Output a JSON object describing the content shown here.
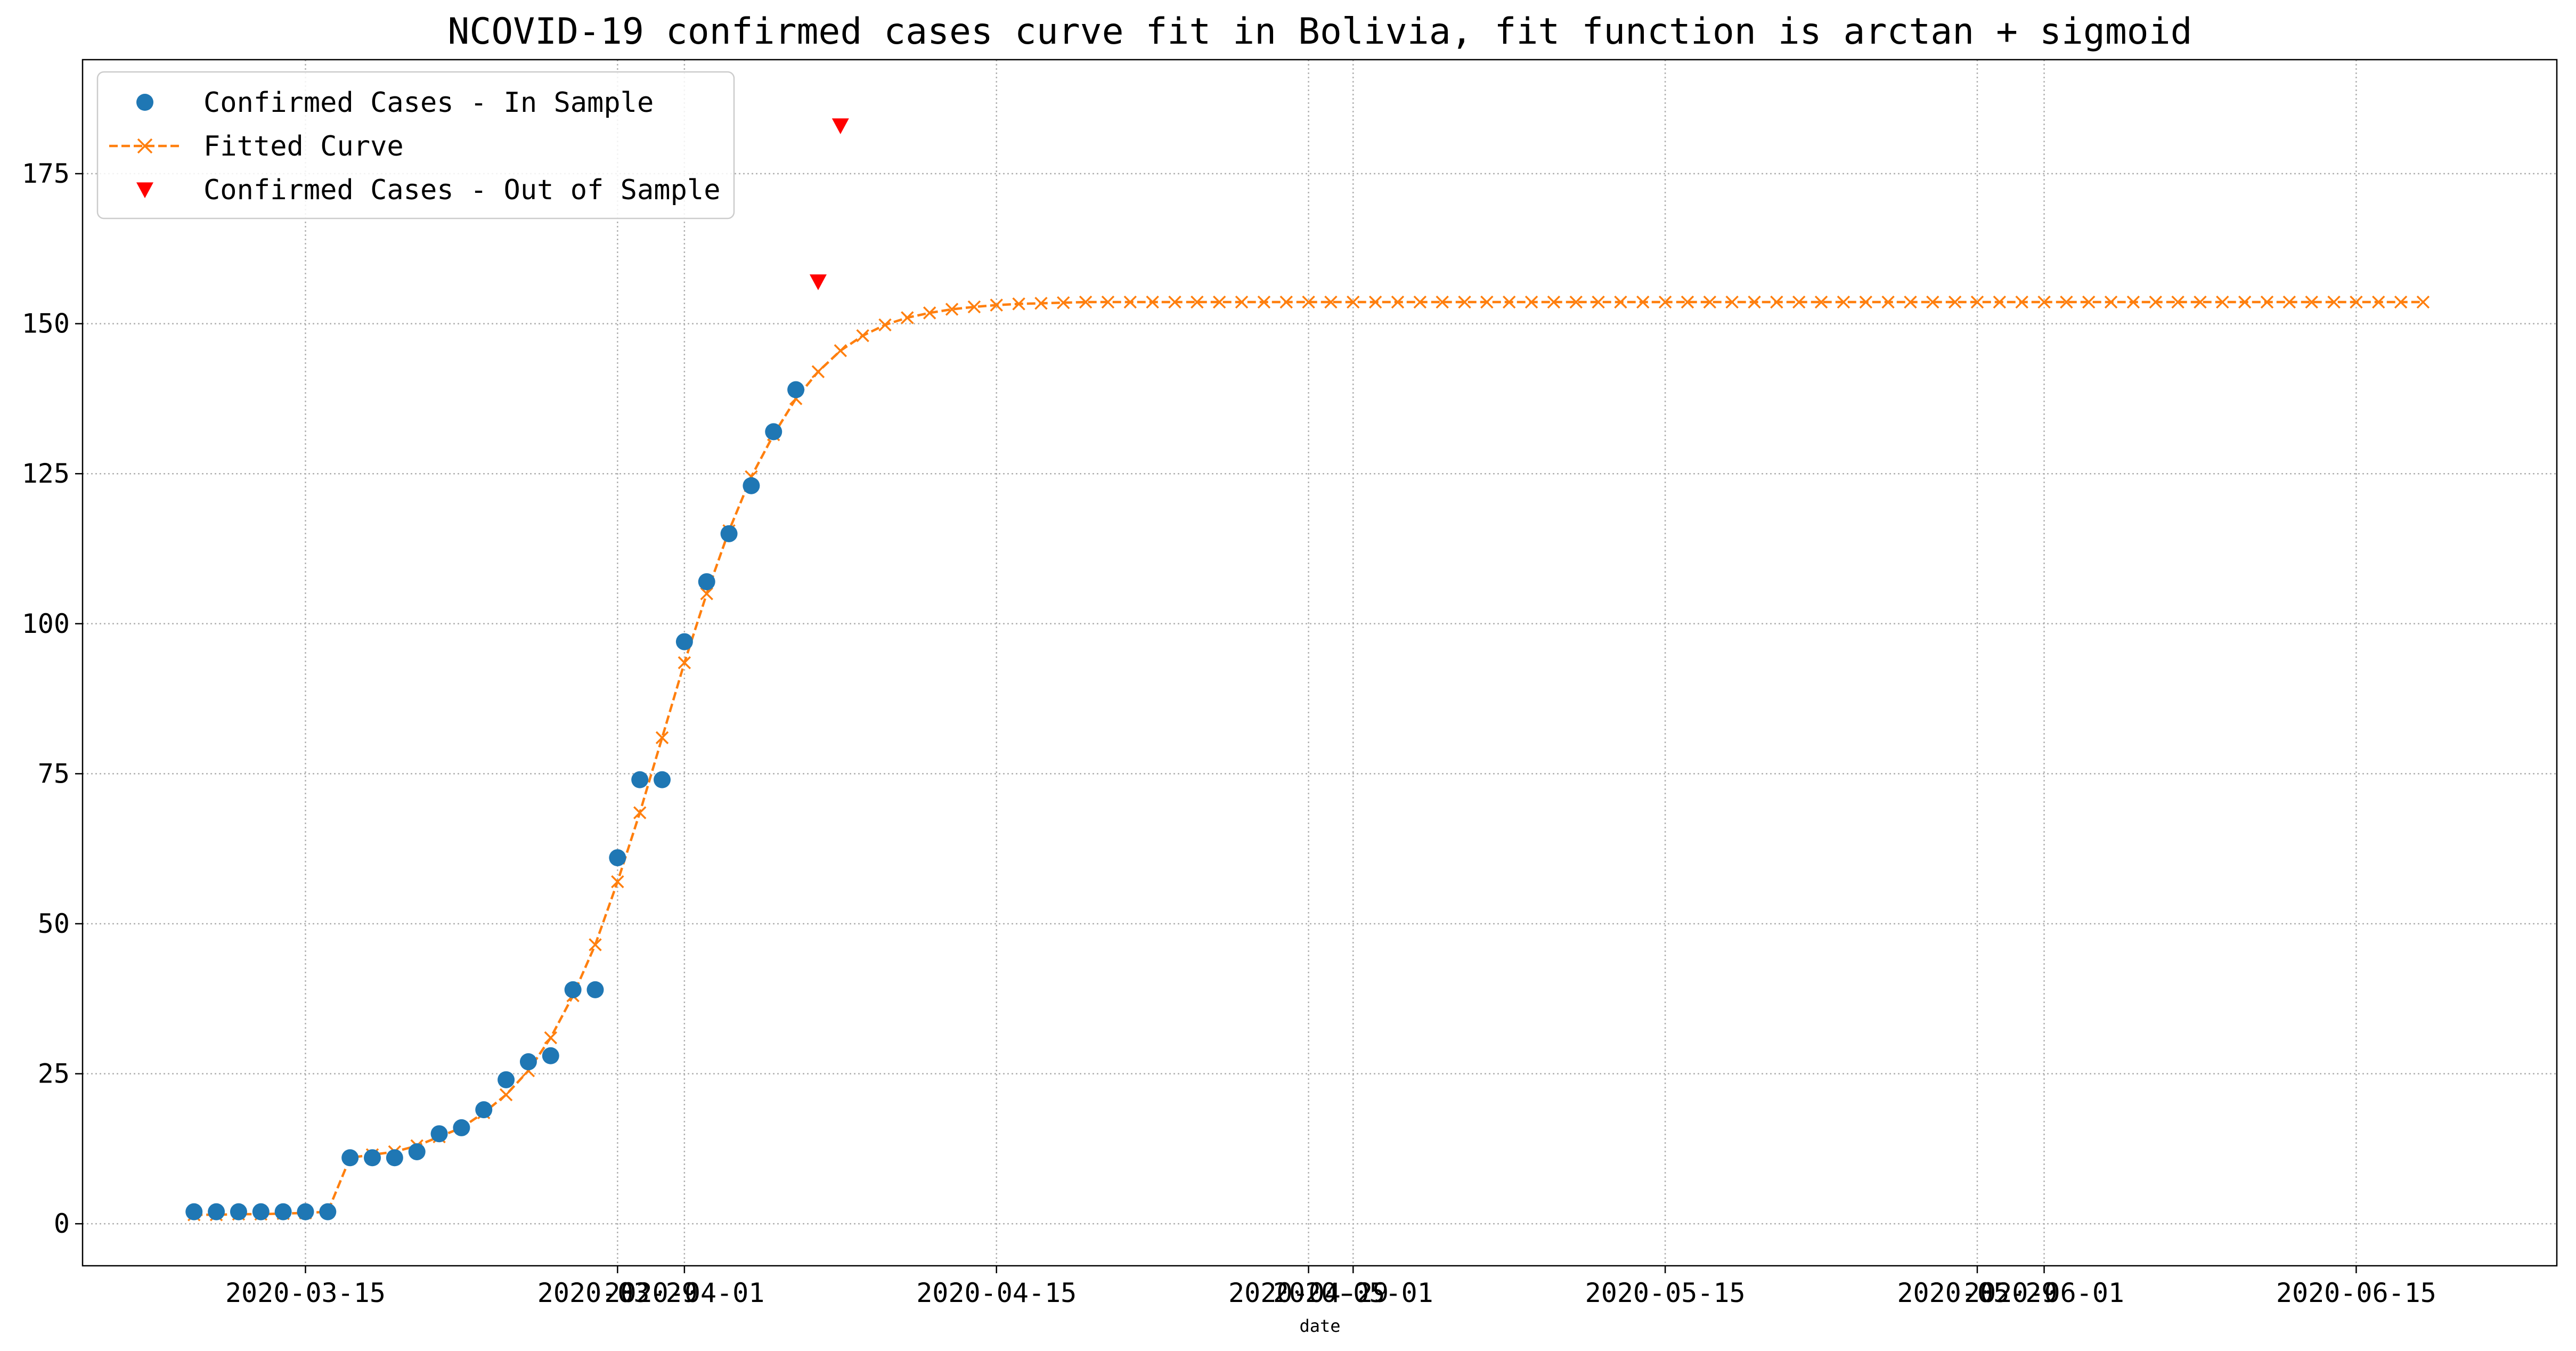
{
  "chart_data": {
    "type": "line",
    "title": "NCOVID-19 confirmed cases curve fit in Bolivia, fit function is arctan + sigmoid",
    "xlabel": "date",
    "ylabel": "",
    "x_axis_type": "date",
    "xlim": [
      "2020-03-05",
      "2020-06-24"
    ],
    "ylim": [
      -7,
      194
    ],
    "y_ticks": [
      0,
      25,
      50,
      75,
      100,
      125,
      150,
      175
    ],
    "x_ticks": [
      "2020-03-15",
      "2020-03-29",
      "2020-04-01",
      "2020-04-15",
      "2020-04-29",
      "2020-05-01",
      "2020-05-15",
      "2020-05-29",
      "2020-06-01",
      "2020-06-15"
    ],
    "grid": true,
    "grid_style": "dotted",
    "legend_position": "top-left",
    "series": [
      {
        "name": "Confirmed Cases - In Sample",
        "kind": "scatter",
        "marker": "circle",
        "color": "#1f77b4",
        "points": [
          [
            "2020-03-10",
            2
          ],
          [
            "2020-03-11",
            2
          ],
          [
            "2020-03-12",
            2
          ],
          [
            "2020-03-13",
            2
          ],
          [
            "2020-03-14",
            2
          ],
          [
            "2020-03-15",
            2
          ],
          [
            "2020-03-16",
            2
          ],
          [
            "2020-03-17",
            11
          ],
          [
            "2020-03-18",
            11
          ],
          [
            "2020-03-19",
            11
          ],
          [
            "2020-03-20",
            12
          ],
          [
            "2020-03-21",
            15
          ],
          [
            "2020-03-22",
            16
          ],
          [
            "2020-03-23",
            19
          ],
          [
            "2020-03-24",
            24
          ],
          [
            "2020-03-25",
            27
          ],
          [
            "2020-03-26",
            28
          ],
          [
            "2020-03-27",
            39
          ],
          [
            "2020-03-28",
            39
          ],
          [
            "2020-03-29",
            61
          ],
          [
            "2020-03-30",
            74
          ],
          [
            "2020-03-31",
            74
          ],
          [
            "2020-04-01",
            97
          ],
          [
            "2020-04-02",
            107
          ],
          [
            "2020-04-03",
            115
          ],
          [
            "2020-04-04",
            123
          ],
          [
            "2020-04-05",
            132
          ],
          [
            "2020-04-06",
            139
          ]
        ]
      },
      {
        "name": "Fitted Curve",
        "kind": "line",
        "marker": "x",
        "line_style": "dashed",
        "color": "#ff7f0e",
        "start": "2020-03-10",
        "values": [
          1.5,
          1.5,
          1.6,
          1.6,
          1.7,
          1.8,
          2.0,
          11.0,
          11.5,
          12.0,
          13.0,
          14.5,
          16.0,
          18.5,
          21.5,
          25.5,
          31.0,
          38.0,
          46.5,
          57.0,
          68.5,
          81.0,
          93.5,
          105.0,
          115.5,
          124.5,
          131.5,
          137.5,
          142.0,
          145.5,
          148.0,
          149.8,
          151.0,
          151.8,
          152.4,
          152.8,
          153.1,
          153.3,
          153.4,
          153.5,
          153.6,
          153.6,
          153.6,
          153.6,
          153.6,
          153.6,
          153.6,
          153.6,
          153.6,
          153.6,
          153.6,
          153.6,
          153.6,
          153.6,
          153.6,
          153.6,
          153.6,
          153.6,
          153.6,
          153.6,
          153.6,
          153.6,
          153.6,
          153.6,
          153.6,
          153.6,
          153.6,
          153.6,
          153.6,
          153.6,
          153.6,
          153.6,
          153.6,
          153.6,
          153.6,
          153.6,
          153.6,
          153.6,
          153.6,
          153.6,
          153.6,
          153.6,
          153.6,
          153.6,
          153.6,
          153.6,
          153.6,
          153.6,
          153.6,
          153.6,
          153.6,
          153.6,
          153.6,
          153.6,
          153.6,
          153.6,
          153.6,
          153.6,
          153.6,
          153.6,
          153.6
        ]
      },
      {
        "name": "Confirmed Cases - Out of Sample",
        "kind": "scatter",
        "marker": "triangle-down",
        "color": "#ff0000",
        "points": [
          [
            "2020-04-07",
            157
          ],
          [
            "2020-04-08",
            183
          ]
        ]
      }
    ]
  }
}
